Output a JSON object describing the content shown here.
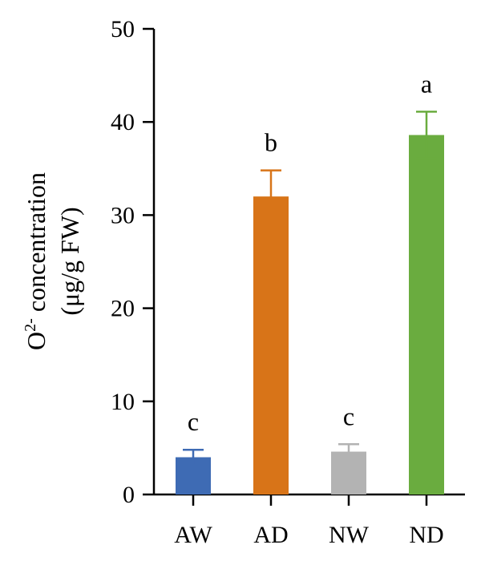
{
  "chart_data": {
    "type": "bar",
    "title": "",
    "categories": [
      "AW",
      "AD",
      "NW",
      "ND"
    ],
    "values": [
      4.0,
      32.0,
      4.6,
      38.6
    ],
    "errors": [
      0.8,
      2.8,
      0.8,
      2.5
    ],
    "significance": [
      "c",
      "b",
      "c",
      "a"
    ],
    "colors": [
      "#3e6bb4",
      "#d87418",
      "#b3b3b3",
      "#6aac3f"
    ],
    "ylim": [
      0,
      50
    ],
    "yticks": [
      0,
      10,
      20,
      30,
      40,
      50
    ],
    "ylabel_line1_base": "O",
    "ylabel_line1_sup": "2-",
    "ylabel_line1_rest": " concentration",
    "ylabel_line2": "(μg/g FW)",
    "xlabel": ""
  }
}
